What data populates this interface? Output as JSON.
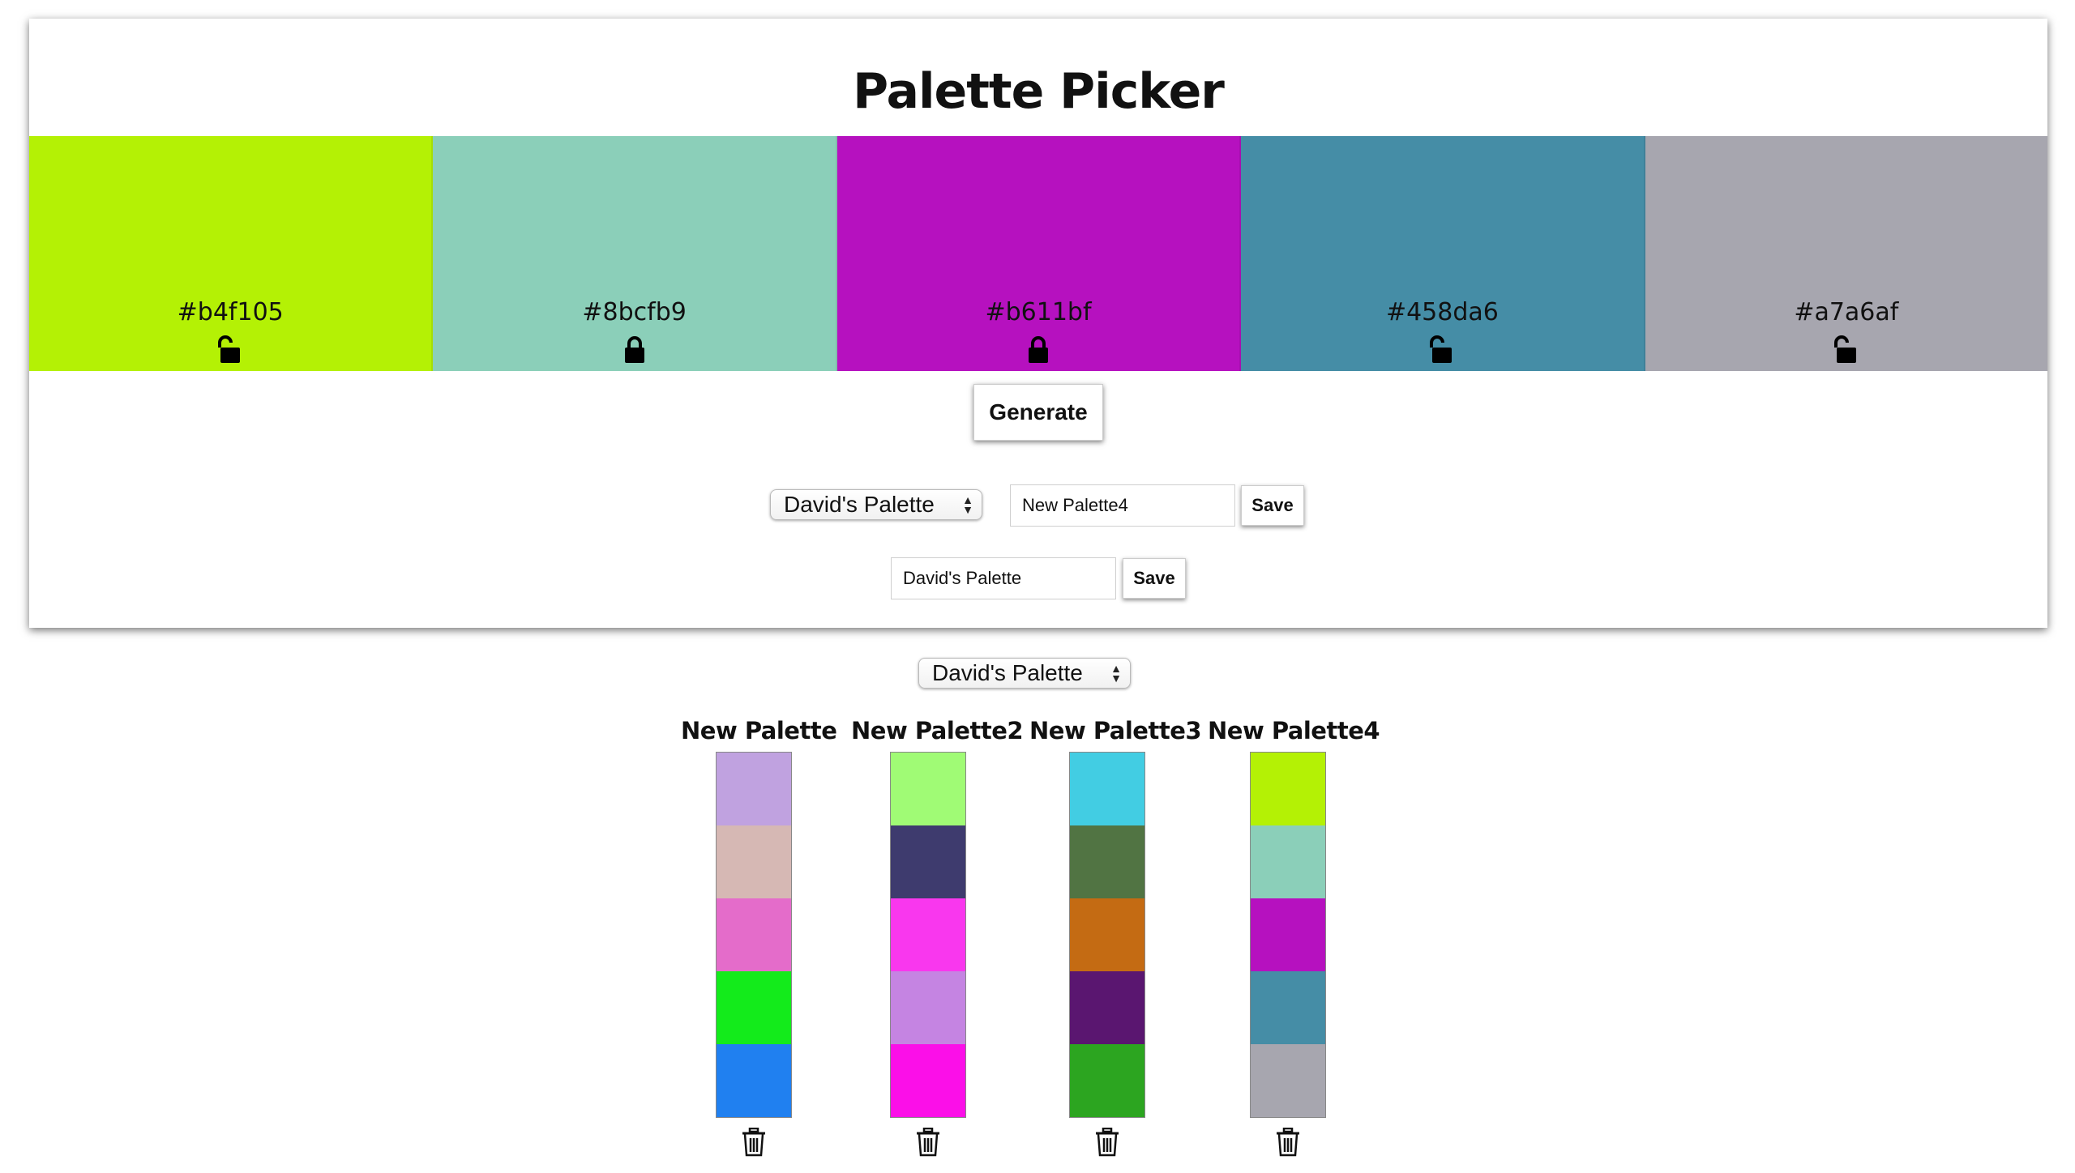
{
  "app": {
    "title": "Palette Picker"
  },
  "palette": {
    "swatches": [
      {
        "hex": "#b4f105",
        "color": "#b4f105",
        "lock_icon": "unlocked-icon",
        "locked": false
      },
      {
        "hex": "#8bcfb9",
        "color": "#8bcfb9",
        "lock_icon": "locked-icon",
        "locked": true
      },
      {
        "hex": "#b611bf",
        "color": "#b611bf",
        "lock_icon": "locked-icon",
        "locked": true
      },
      {
        "hex": "#458da6",
        "color": "#458da6",
        "lock_icon": "unlocked-icon",
        "locked": false
      },
      {
        "hex": "#a7a6af",
        "color": "#a7a6af",
        "lock_icon": "unlocked-icon",
        "locked": false
      }
    ]
  },
  "controls": {
    "generate_label": "Generate",
    "project_select_value": "David's Palette",
    "palette_name_value": "New Palette4",
    "palette_save_label": "Save",
    "project_name_value": "David's Palette",
    "project_save_label": "Save"
  },
  "saved": {
    "project_select_value": "David's Palette",
    "palettes": [
      {
        "name": "New Palette",
        "colors": [
          "#c0a2e0",
          "#d6b8b4",
          "#e46cca",
          "#13eb1b",
          "#2080f0"
        ]
      },
      {
        "name": "New Palette2",
        "colors": [
          "#a0fb75",
          "#3e3b6e",
          "#f937ee",
          "#c584e2",
          "#fb0fe8"
        ]
      },
      {
        "name": "New Palette3",
        "colors": [
          "#42cde3",
          "#517443",
          "#c46b13",
          "#5a1670",
          "#2ca520"
        ]
      },
      {
        "name": "New Palette4",
        "colors": [
          "#b4f105",
          "#8bcfb9",
          "#b611bf",
          "#458da6",
          "#a7a6af"
        ]
      }
    ],
    "trash_icon": "trash-icon"
  }
}
